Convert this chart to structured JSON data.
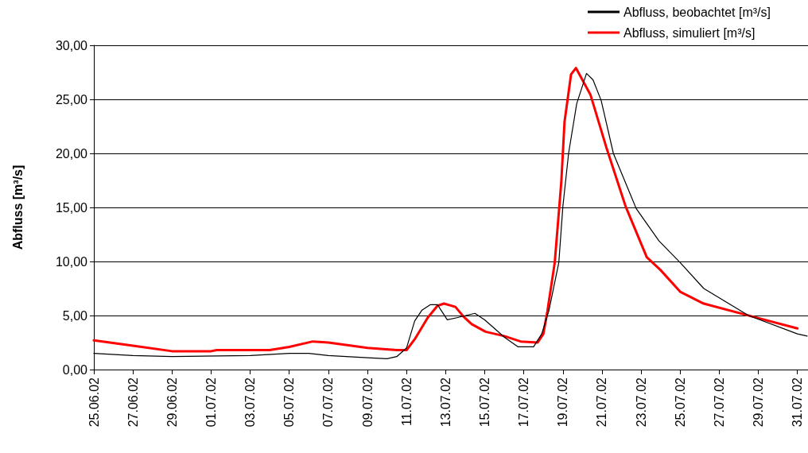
{
  "chart_data": {
    "type": "line",
    "ylabel": "Abfluss [m³/s]",
    "xlim": [
      "--06-25",
      "--07-31T13:00"
    ],
    "xticks": [
      {
        "value": "--06-25",
        "label": "25.06.02"
      },
      {
        "value": "--06-27",
        "label": "27.06.02"
      },
      {
        "value": "--06-29",
        "label": "29.06.02"
      },
      {
        "value": "--07-01",
        "label": "01.07.02"
      },
      {
        "value": "--07-03",
        "label": "03.07.02"
      },
      {
        "value": "--07-05",
        "label": "05.07.02"
      },
      {
        "value": "--07-07",
        "label": "07.07.02"
      },
      {
        "value": "--07-09",
        "label": "09.07.02"
      },
      {
        "value": "--07-11",
        "label": "11.07.02"
      },
      {
        "value": "--07-13",
        "label": "13.07.02"
      },
      {
        "value": "--07-15",
        "label": "15.07.02"
      },
      {
        "value": "--07-17",
        "label": "17.07.02"
      },
      {
        "value": "--07-19",
        "label": "19.07.02"
      },
      {
        "value": "--07-21",
        "label": "21.07.02"
      },
      {
        "value": "--07-23",
        "label": "23.07.02"
      },
      {
        "value": "--07-25",
        "label": "25.07.02"
      },
      {
        "value": "--07-27",
        "label": "27.07.02"
      },
      {
        "value": "--07-29",
        "label": "29.07.02"
      },
      {
        "value": "--07-31",
        "label": "31.07.02"
      }
    ],
    "ylim": [
      0,
      30
    ],
    "yticks": [
      {
        "value": 0,
        "label": "0,00"
      },
      {
        "value": 5,
        "label": "5,00"
      },
      {
        "value": 10,
        "label": "10,00"
      },
      {
        "value": 15,
        "label": "15,00"
      },
      {
        "value": 20,
        "label": "20,00"
      },
      {
        "value": 25,
        "label": "25,00"
      },
      {
        "value": 30,
        "label": "30,00"
      }
    ],
    "grid": "y",
    "legend": "top right",
    "marker": "none",
    "line_style": "solid",
    "series": [
      {
        "name": "Abfluss, beobachtet [m³/s]",
        "color": "#000000",
        "x": [
          "--06-25",
          "--06-27",
          "--06-29",
          "--07-03",
          "--07-05",
          "--07-06",
          "--07-07",
          "--07-09",
          "--07-10",
          "--07-10T12:00",
          "--07-11",
          "--07-11T10:00",
          "--07-11T19:00",
          "--07-12T05:00",
          "--07-12T14:00",
          "--07-13T02:00",
          "--07-13T14:00",
          "--07-14T12:00",
          "--07-15",
          "--07-15T12:00",
          "--07-16",
          "--07-16T17:00",
          "--07-17T12:00",
          "--07-17T22:00",
          "--07-18T07:00",
          "--07-18T19:00",
          "--07-19",
          "--07-19T07:00",
          "--07-19T17:00",
          "--07-20T05:00",
          "--07-20T13:00",
          "--07-20T23:00",
          "--07-21T14:00",
          "--07-22T18:00",
          "--07-23T22:00",
          "--07-25",
          "--07-26T05:00",
          "--07-28T12:00",
          "--07-31",
          "--07-31T12:00"
        ],
        "values": [
          1.5,
          1.3,
          1.2,
          1.3,
          1.5,
          1.5,
          1.3,
          1.1,
          1.0,
          1.2,
          2.0,
          4.5,
          5.5,
          6.0,
          6.0,
          4.6,
          4.8,
          5.2,
          4.6,
          3.8,
          3.0,
          2.1,
          2.1,
          3.3,
          5.5,
          9.9,
          15.1,
          20.0,
          24.6,
          27.4,
          26.8,
          24.9,
          20.0,
          14.9,
          11.9,
          9.9,
          7.5,
          5.0,
          3.3,
          3.1
        ]
      },
      {
        "name": "Abfluss, simuliert [m³/s]",
        "color": "#ff0000",
        "x": [
          "--06-25",
          "--06-27",
          "--06-29",
          "--07-01",
          "--07-01T07:00",
          "--07-04",
          "--07-05",
          "--07-06T05:00",
          "--07-07",
          "--07-09",
          "--07-10T12:00",
          "--07-11",
          "--07-11T10:00",
          "--07-12T02:00",
          "--07-12T14:00",
          "--07-12T22:00",
          "--07-13T12:00",
          "--07-13T22:00",
          "--07-14T08:00",
          "--07-15T01:00",
          "--07-16",
          "--07-16T20:00",
          "--07-17T17:00",
          "--07-18",
          "--07-18T05:00",
          "--07-18T14:00",
          "--07-18T22:00",
          "--07-19T02:00",
          "--07-19T10:00",
          "--07-19T16:00",
          "--07-20T10:00",
          "--07-21T06:00",
          "--07-22T05:00",
          "--07-23T07:00",
          "--07-24",
          "--07-25",
          "--07-26T05:00",
          "--07-28T17:00",
          "--07-31"
        ],
        "values": [
          2.7,
          2.2,
          1.7,
          1.7,
          1.8,
          1.8,
          2.1,
          2.6,
          2.5,
          2.0,
          1.8,
          1.8,
          2.8,
          4.8,
          5.9,
          6.1,
          5.8,
          4.9,
          4.2,
          3.5,
          3.1,
          2.6,
          2.5,
          3.3,
          5.4,
          9.9,
          17.3,
          22.9,
          27.3,
          27.9,
          25.4,
          20.4,
          15.1,
          10.4,
          9.2,
          7.2,
          6.1,
          4.9,
          3.8
        ]
      }
    ]
  }
}
